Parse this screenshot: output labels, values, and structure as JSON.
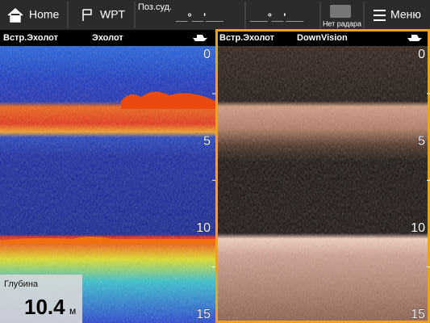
{
  "top_bar": {
    "home": "Home",
    "waypoint": "WPT",
    "position_label": "Поз.суд.",
    "latitude": "__°__'___",
    "longitude": "___°__'___",
    "radar_status": "Нет радара",
    "menu": "Меню"
  },
  "panes": [
    {
      "source": "Встр.Эхолот",
      "mode": "Эхолот",
      "depth_scale": [
        0,
        5,
        10,
        15
      ]
    },
    {
      "source": "Встр.Эхолот",
      "mode": "DownVision",
      "depth_scale": [
        0,
        5,
        10,
        15
      ]
    }
  ],
  "depth_box": {
    "label": "Глубина",
    "value": "10.4",
    "unit": "м"
  }
}
